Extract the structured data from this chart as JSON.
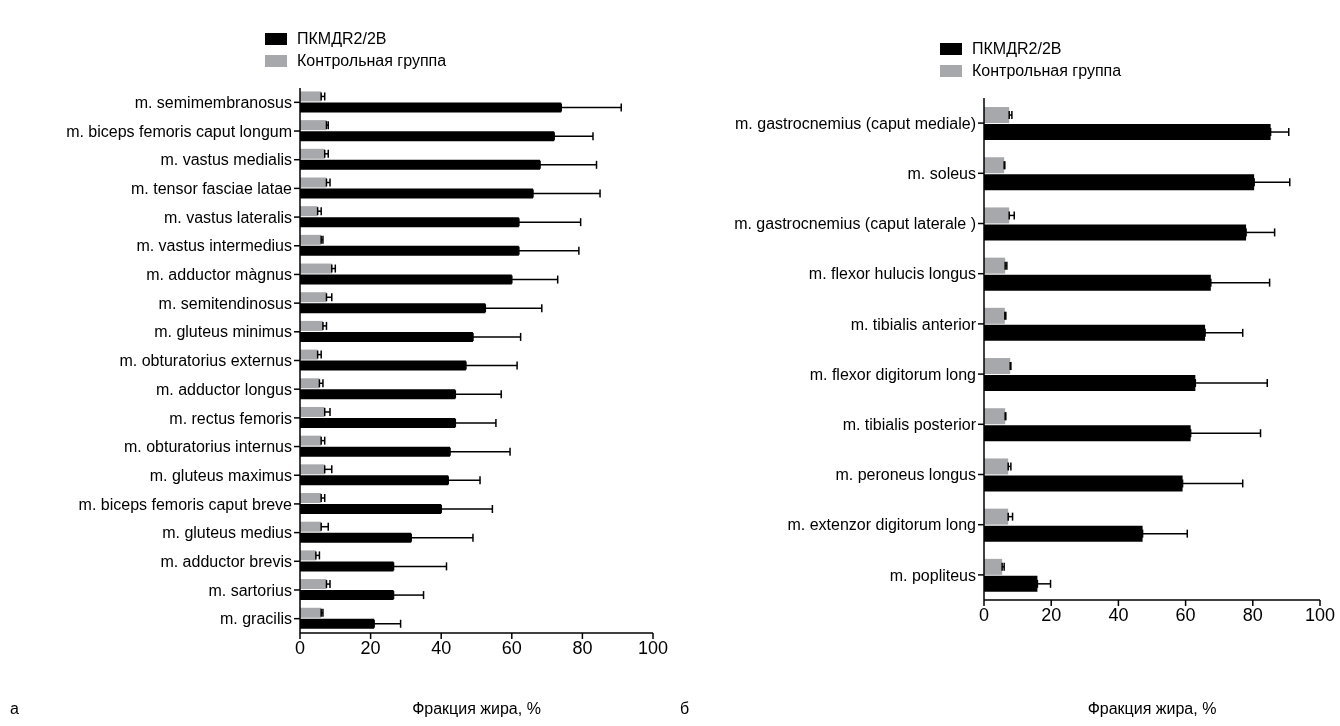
{
  "chart_data": [
    {
      "type": "bar",
      "orientation": "horizontal",
      "xlabel": "Фракция жира, %",
      "annotations": [
        "а"
      ],
      "legend": "top",
      "xlim": [
        0,
        100
      ],
      "xticks": [
        0,
        20,
        40,
        60,
        80,
        100
      ],
      "categories": [
        "m. semimembranosus",
        "m. biceps femoris caput longum",
        "m. vastus medialis",
        "m. tensor fasciae latae",
        "m. vastus lateralis",
        "m. vastus intermedius",
        "m. adductor màgnus",
        "m. semitendinosus",
        "m. gluteus minimus",
        "m. obturatorius externus",
        "m. adductor longus",
        "m. rectus femoris",
        "m. obturatorius internus",
        "m. gluteus maximus",
        "m. biceps femoris caput breve",
        "m. gluteus medius",
        "m. adductor brevis",
        "m. sartorius",
        "m. gracilis"
      ],
      "series": [
        {
          "name": "ПКМДR2/2B",
          "color": "#000000",
          "values": [
            74,
            72,
            68,
            66,
            62,
            62,
            60,
            52.5,
            49,
            47,
            44,
            44,
            42.5,
            42,
            40,
            31.5,
            26.5,
            26.5,
            21
          ],
          "errors": [
            [
              74,
              91
            ],
            [
              72,
              83
            ],
            [
              68,
              84
            ],
            [
              66,
              85
            ],
            [
              62,
              79.5
            ],
            [
              62,
              79
            ],
            [
              60,
              73
            ],
            [
              52.5,
              68.5
            ],
            [
              49,
              62.5
            ],
            [
              47,
              61.5
            ],
            [
              44,
              57
            ],
            [
              44,
              55.5
            ],
            [
              42.5,
              59.5
            ],
            [
              42,
              51
            ],
            [
              40,
              54.5
            ],
            [
              31.5,
              49
            ],
            [
              26.5,
              41.5
            ],
            [
              26.5,
              35
            ],
            [
              21,
              28.5
            ]
          ]
        },
        {
          "name": "Контрольная группа",
          "color": "#a6a8ab",
          "values": [
            6,
            7.5,
            7,
            7.5,
            5,
            6,
            9,
            7.5,
            6.5,
            5,
            5.5,
            7,
            6,
            7,
            6,
            6,
            4.5,
            7.5,
            6
          ],
          "errors": [
            [
              6,
              7
            ],
            [
              7.5,
              8
            ],
            [
              7,
              8
            ],
            [
              7.5,
              8.5
            ],
            [
              5,
              6
            ],
            [
              6,
              6.5
            ],
            [
              9,
              10
            ],
            [
              7.5,
              9
            ],
            [
              6.5,
              7.5
            ],
            [
              5,
              6
            ],
            [
              5.5,
              6.5
            ],
            [
              7,
              8.5
            ],
            [
              6,
              7
            ],
            [
              7,
              9
            ],
            [
              6,
              7
            ],
            [
              6,
              8
            ],
            [
              4.5,
              5.5
            ],
            [
              7.5,
              8.5
            ],
            [
              6,
              6.5
            ]
          ]
        }
      ]
    },
    {
      "type": "bar",
      "orientation": "horizontal",
      "xlabel": "Фракция жира, %",
      "annotations": [
        "б"
      ],
      "legend": "top",
      "xlim": [
        0,
        100
      ],
      "xticks": [
        0,
        20,
        40,
        60,
        80,
        100
      ],
      "categories": [
        "m. gastrocnemius (caput mediale)",
        "m. soleus",
        "m. gastrocnemius (caput laterale )",
        "m. flexor hulucis longus",
        "m. tibialis anterior",
        "m. flexor digitorum long",
        "m. tibialis posterior",
        "m. peroneus longus",
        "m. extenzor digitorum long",
        "m. popliteus"
      ],
      "series": [
        {
          "name": "ПКМДR2/2B",
          "color": "#000000",
          "values": [
            85.3,
            80.4,
            78,
            67.5,
            65.8,
            62.9,
            61.5,
            59.1,
            47.2,
            15.9
          ],
          "errors": [
            [
              85.3,
              90.7
            ],
            [
              80.4,
              91
            ],
            [
              78,
              86.5
            ],
            [
              67.5,
              85
            ],
            [
              65.8,
              77
            ],
            [
              62.9,
              84.3
            ],
            [
              61.5,
              82.3
            ],
            [
              59.1,
              77
            ],
            [
              47.2,
              60.5
            ],
            [
              15.9,
              19.8
            ]
          ]
        },
        {
          "name": "Контрольная группа",
          "color": "#a6a8ab",
          "values": [
            7.5,
            6,
            7.5,
            6.3,
            6.2,
            7.8,
            6.3,
            7.2,
            7.2,
            5.4
          ],
          "errors": [
            [
              7.5,
              8.3
            ],
            [
              6,
              6.2
            ],
            [
              7.5,
              9
            ],
            [
              6.3,
              6.8
            ],
            [
              6.2,
              6.5
            ],
            [
              7.8,
              8
            ],
            [
              6.3,
              6.5
            ],
            [
              7.2,
              8
            ],
            [
              7.2,
              8.5
            ],
            [
              5.4,
              6
            ]
          ]
        }
      ]
    }
  ]
}
